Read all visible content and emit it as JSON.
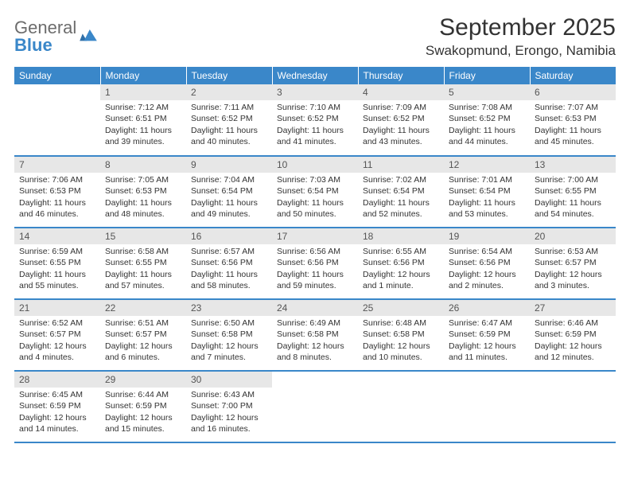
{
  "brand": {
    "general": "General",
    "blue": "Blue"
  },
  "title": "September 2025",
  "location": "Swakopmund, Erongo, Namibia",
  "colors": {
    "header_bg": "#3a87c9",
    "header_fg": "#ffffff",
    "daynum_bg": "#e7e7e7",
    "row_divider": "#3a87c9",
    "text": "#333333",
    "logo_gray": "#6c6c6c",
    "logo_blue": "#3a87c9",
    "page_bg": "#ffffff"
  },
  "fonts": {
    "title_size": 30,
    "location_size": 17,
    "weekday_size": 12,
    "body_size": 10.5
  },
  "weekdays": [
    "Sunday",
    "Monday",
    "Tuesday",
    "Wednesday",
    "Thursday",
    "Friday",
    "Saturday"
  ],
  "weeks": [
    [
      null,
      {
        "n": "1",
        "sr": "7:12 AM",
        "ss": "6:51 PM",
        "dl": "11 hours and 39 minutes."
      },
      {
        "n": "2",
        "sr": "7:11 AM",
        "ss": "6:52 PM",
        "dl": "11 hours and 40 minutes."
      },
      {
        "n": "3",
        "sr": "7:10 AM",
        "ss": "6:52 PM",
        "dl": "11 hours and 41 minutes."
      },
      {
        "n": "4",
        "sr": "7:09 AM",
        "ss": "6:52 PM",
        "dl": "11 hours and 43 minutes."
      },
      {
        "n": "5",
        "sr": "7:08 AM",
        "ss": "6:52 PM",
        "dl": "11 hours and 44 minutes."
      },
      {
        "n": "6",
        "sr": "7:07 AM",
        "ss": "6:53 PM",
        "dl": "11 hours and 45 minutes."
      }
    ],
    [
      {
        "n": "7",
        "sr": "7:06 AM",
        "ss": "6:53 PM",
        "dl": "11 hours and 46 minutes."
      },
      {
        "n": "8",
        "sr": "7:05 AM",
        "ss": "6:53 PM",
        "dl": "11 hours and 48 minutes."
      },
      {
        "n": "9",
        "sr": "7:04 AM",
        "ss": "6:54 PM",
        "dl": "11 hours and 49 minutes."
      },
      {
        "n": "10",
        "sr": "7:03 AM",
        "ss": "6:54 PM",
        "dl": "11 hours and 50 minutes."
      },
      {
        "n": "11",
        "sr": "7:02 AM",
        "ss": "6:54 PM",
        "dl": "11 hours and 52 minutes."
      },
      {
        "n": "12",
        "sr": "7:01 AM",
        "ss": "6:54 PM",
        "dl": "11 hours and 53 minutes."
      },
      {
        "n": "13",
        "sr": "7:00 AM",
        "ss": "6:55 PM",
        "dl": "11 hours and 54 minutes."
      }
    ],
    [
      {
        "n": "14",
        "sr": "6:59 AM",
        "ss": "6:55 PM",
        "dl": "11 hours and 55 minutes."
      },
      {
        "n": "15",
        "sr": "6:58 AM",
        "ss": "6:55 PM",
        "dl": "11 hours and 57 minutes."
      },
      {
        "n": "16",
        "sr": "6:57 AM",
        "ss": "6:56 PM",
        "dl": "11 hours and 58 minutes."
      },
      {
        "n": "17",
        "sr": "6:56 AM",
        "ss": "6:56 PM",
        "dl": "11 hours and 59 minutes."
      },
      {
        "n": "18",
        "sr": "6:55 AM",
        "ss": "6:56 PM",
        "dl": "12 hours and 1 minute."
      },
      {
        "n": "19",
        "sr": "6:54 AM",
        "ss": "6:56 PM",
        "dl": "12 hours and 2 minutes."
      },
      {
        "n": "20",
        "sr": "6:53 AM",
        "ss": "6:57 PM",
        "dl": "12 hours and 3 minutes."
      }
    ],
    [
      {
        "n": "21",
        "sr": "6:52 AM",
        "ss": "6:57 PM",
        "dl": "12 hours and 4 minutes."
      },
      {
        "n": "22",
        "sr": "6:51 AM",
        "ss": "6:57 PM",
        "dl": "12 hours and 6 minutes."
      },
      {
        "n": "23",
        "sr": "6:50 AM",
        "ss": "6:58 PM",
        "dl": "12 hours and 7 minutes."
      },
      {
        "n": "24",
        "sr": "6:49 AM",
        "ss": "6:58 PM",
        "dl": "12 hours and 8 minutes."
      },
      {
        "n": "25",
        "sr": "6:48 AM",
        "ss": "6:58 PM",
        "dl": "12 hours and 10 minutes."
      },
      {
        "n": "26",
        "sr": "6:47 AM",
        "ss": "6:59 PM",
        "dl": "12 hours and 11 minutes."
      },
      {
        "n": "27",
        "sr": "6:46 AM",
        "ss": "6:59 PM",
        "dl": "12 hours and 12 minutes."
      }
    ],
    [
      {
        "n": "28",
        "sr": "6:45 AM",
        "ss": "6:59 PM",
        "dl": "12 hours and 14 minutes."
      },
      {
        "n": "29",
        "sr": "6:44 AM",
        "ss": "6:59 PM",
        "dl": "12 hours and 15 minutes."
      },
      {
        "n": "30",
        "sr": "6:43 AM",
        "ss": "7:00 PM",
        "dl": "12 hours and 16 minutes."
      },
      null,
      null,
      null,
      null
    ]
  ],
  "labels": {
    "sunrise": "Sunrise: ",
    "sunset": "Sunset: ",
    "daylight": "Daylight: "
  }
}
